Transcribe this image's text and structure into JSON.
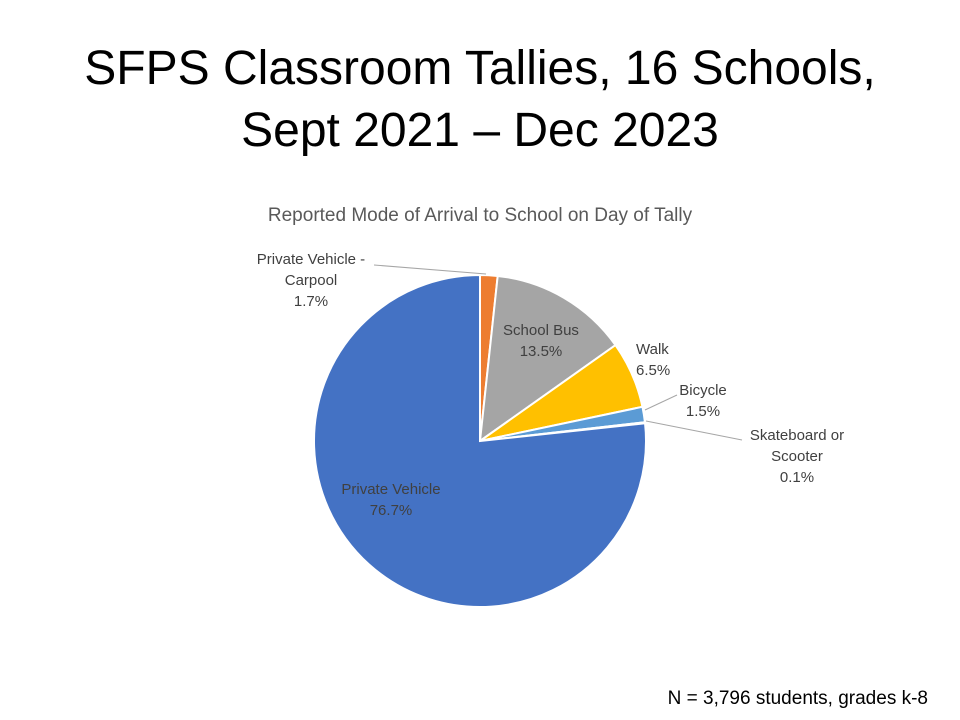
{
  "slide": {
    "title_line1": "SFPS Classroom Tallies, 16 Schools,",
    "title_line2": "Sept 2021 – Dec 2023",
    "footnote": "N  = 3,796 students, grades k-8"
  },
  "chart_data": {
    "type": "pie",
    "title": "Reported Mode of Arrival to School on Day of Tally",
    "slices": [
      {
        "name": "Private Vehicle - Carpool",
        "label_lines": [
          "Private Vehicle -",
          "Carpool"
        ],
        "pct_label": "1.7%",
        "value": 1.7,
        "color": "#ED7D31"
      },
      {
        "name": "School Bus",
        "label_lines": [
          "School Bus"
        ],
        "pct_label": "13.5%",
        "value": 13.5,
        "color": "#A5A5A5"
      },
      {
        "name": "Walk",
        "label_lines": [
          "Walk"
        ],
        "pct_label": "6.5%",
        "value": 6.5,
        "color": "#FFC000"
      },
      {
        "name": "Bicycle",
        "label_lines": [
          "Bicycle"
        ],
        "pct_label": "1.5%",
        "value": 1.5,
        "color": "#5B9BD5"
      },
      {
        "name": "Skateboard or Scooter",
        "label_lines": [
          "Skateboard or",
          "Scooter"
        ],
        "pct_label": "0.1%",
        "value": 0.1,
        "color": "#264478"
      },
      {
        "name": "Private Vehicle",
        "label_lines": [
          "Private Vehicle"
        ],
        "pct_label": "76.7%",
        "value": 76.7,
        "color": "#4472C4"
      }
    ],
    "legend": "none"
  }
}
